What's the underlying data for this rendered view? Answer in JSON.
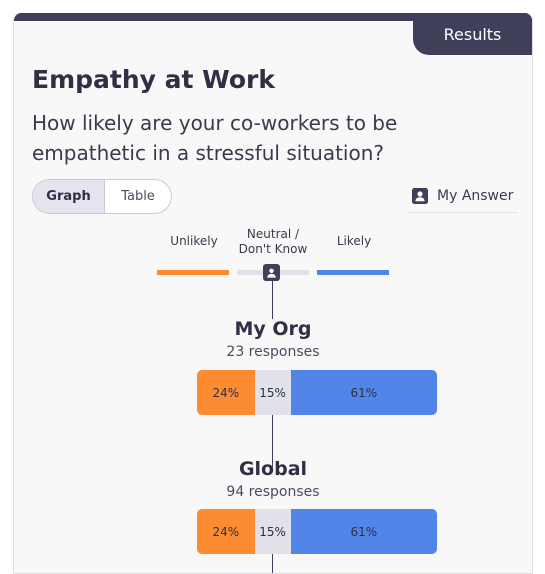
{
  "header": {
    "tab_label": "Results"
  },
  "question": {
    "title": "Empathy at Work",
    "text": "How likely are your co-workers to be empathetic in a stressful situation?"
  },
  "view_toggle": {
    "options": [
      "Graph",
      "Table"
    ],
    "selected": "Graph"
  },
  "my_answer": {
    "label": "My Answer",
    "icon": "person-icon"
  },
  "legend": [
    {
      "label": "Unlikely",
      "color": "#fb8c34"
    },
    {
      "label": "Neutral / Don't Know",
      "color": "#e1e1ea"
    },
    {
      "label": "Likely",
      "color": "#5285e8"
    }
  ],
  "my_answer_marker": {
    "category": "Neutral / Don't Know"
  },
  "groups": [
    {
      "name": "My Org",
      "responses": "23 responses",
      "segments": [
        {
          "label": "24%",
          "value": 24,
          "color": "#fb8c34"
        },
        {
          "label": "15%",
          "value": 15,
          "color": "#e1e1ea"
        },
        {
          "label": "61%",
          "value": 61,
          "color": "#5285e8"
        }
      ]
    },
    {
      "name": "Global",
      "responses": "94 responses",
      "segments": [
        {
          "label": "24%",
          "value": 24,
          "color": "#fb8c34"
        },
        {
          "label": "15%",
          "value": 15,
          "color": "#e1e1ea"
        },
        {
          "label": "61%",
          "value": 61,
          "color": "#5285e8"
        }
      ]
    }
  ]
}
